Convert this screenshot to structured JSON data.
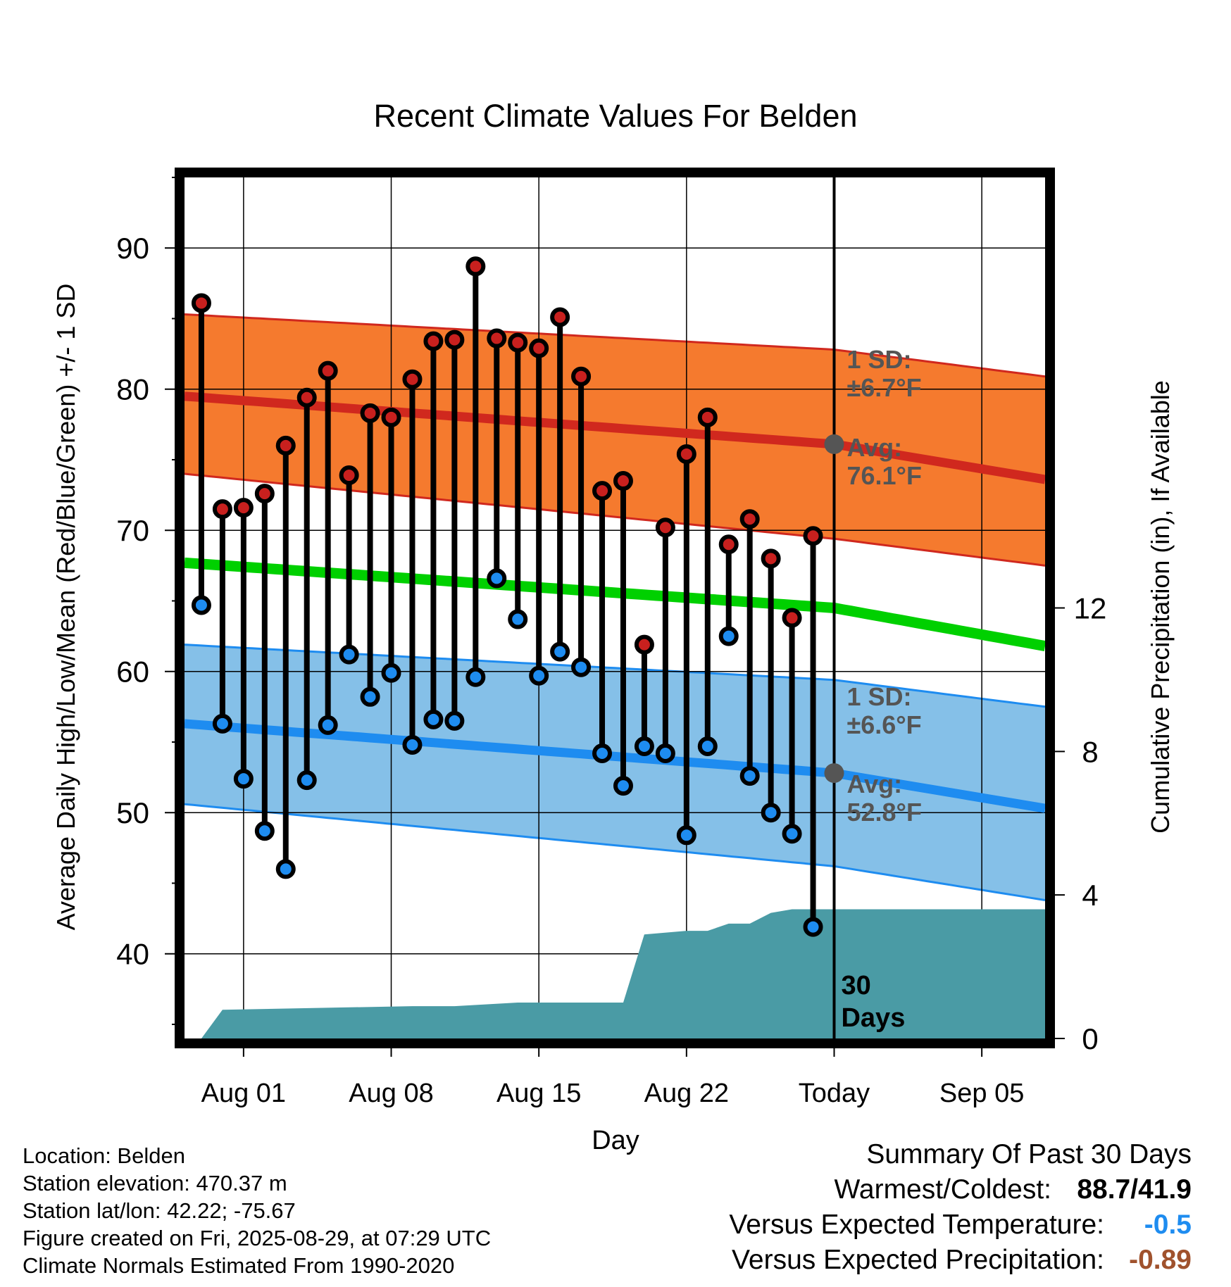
{
  "chart_data": {
    "type": "line",
    "title": "Recent Climate Values For Belden",
    "xlabel": "Day",
    "ylabel": "Average Daily High/Low/Mean (Red/Blue/Green) +/- 1 SD",
    "y2label": "Cumulative Precipitation (in), If Available",
    "ylim": [
      34,
      95
    ],
    "y2lim": [
      0,
      24
    ],
    "y_ticks": [
      40,
      50,
      60,
      70,
      80,
      90
    ],
    "y2_ticks": [
      0,
      4,
      8,
      12
    ],
    "x_ticks": [
      {
        "day": 5,
        "label": "Aug 01"
      },
      {
        "day": 12,
        "label": "Aug 08"
      },
      {
        "day": 19,
        "label": "Aug 15"
      },
      {
        "day": 26,
        "label": "Aug 22"
      },
      {
        "day": 33,
        "label": "Today"
      },
      {
        "day": 40,
        "label": "Sep 05"
      }
    ],
    "xlim": [
      2.2,
      43.0
    ],
    "today_day": 33,
    "period_label": "30 Days",
    "series": [
      {
        "name": "High",
        "color": "#c8201e",
        "x": [
          3,
          4,
          5,
          6,
          7,
          8,
          9,
          10,
          11,
          12,
          13,
          14,
          15,
          16,
          17,
          18,
          19,
          20,
          21,
          22,
          23,
          24,
          25,
          26,
          27,
          28,
          29,
          30,
          31,
          32
        ],
        "values": [
          86.1,
          71.5,
          71.6,
          72.6,
          76.0,
          79.4,
          81.3,
          73.9,
          78.3,
          78.0,
          80.7,
          83.4,
          83.5,
          88.7,
          83.6,
          83.3,
          82.9,
          85.1,
          80.9,
          72.8,
          73.5,
          61.9,
          70.2,
          75.4,
          78.0,
          69.0,
          70.8,
          68.0,
          63.8,
          69.6
        ]
      },
      {
        "name": "Low",
        "color": "#1e8cf0",
        "x": [
          3,
          4,
          5,
          6,
          7,
          8,
          9,
          10,
          11,
          12,
          13,
          14,
          15,
          16,
          17,
          18,
          19,
          20,
          21,
          22,
          23,
          24,
          25,
          26,
          27,
          28,
          29,
          30,
          31,
          32
        ],
        "values": [
          64.7,
          56.3,
          52.4,
          48.7,
          46.0,
          52.3,
          56.2,
          61.2,
          58.2,
          59.9,
          54.8,
          56.6,
          56.5,
          59.6,
          66.6,
          63.7,
          59.7,
          61.4,
          60.3,
          54.2,
          51.9,
          54.7,
          54.2,
          48.4,
          54.7,
          62.5,
          52.6,
          50.0,
          48.5,
          41.9
        ]
      }
    ],
    "normals": {
      "x": [
        2.2,
        33,
        43
      ],
      "high_avg": [
        79.5,
        76.1,
        73.6
      ],
      "high_upper": [
        85.3,
        82.8,
        80.9
      ],
      "high_lower": [
        74.0,
        69.4,
        67.5
      ],
      "low_avg": [
        56.3,
        52.8,
        50.3
      ],
      "low_upper": [
        61.9,
        59.4,
        57.5
      ],
      "low_lower": [
        50.6,
        46.2,
        43.8
      ],
      "mean": [
        67.7,
        64.5,
        61.8
      ]
    },
    "precipitation": {
      "x": [
        3,
        4,
        13,
        15,
        18,
        21,
        23,
        24,
        26,
        27,
        28,
        29,
        30,
        31,
        32,
        33,
        43
      ],
      "values": [
        0,
        0.8,
        0.9,
        0.9,
        1.0,
        1.0,
        1.0,
        2.9,
        3.0,
        3.0,
        3.2,
        3.2,
        3.5,
        3.6,
        3.6,
        3.6,
        3.6
      ]
    },
    "annotations": {
      "high_sd": "1 SD:",
      "high_sd_value": "±6.7°F",
      "high_avg": "Avg:",
      "high_avg_value": "76.1°F",
      "low_sd": "1 SD:",
      "low_sd_value": "±6.6°F",
      "low_avg": "Avg:",
      "low_avg_value": "52.8°F"
    }
  },
  "info": {
    "location": "Location: Belden",
    "elevation": "Station elevation: 470.37 m",
    "latlon": "Station lat/lon: 42.22; -75.67",
    "created": "Figure created on Fri, 2025-08-29, at 07:29 UTC",
    "normals": "Climate Normals Estimated From 1990-2020"
  },
  "summary": {
    "heading": "Summary Of Past 30 Days",
    "warmest_label": "Warmest/Coldest:",
    "warmest_value": "88.7/41.9",
    "temp_label": "Versus Expected Temperature:",
    "temp_value": "-0.5",
    "temp_color": "#1e8cf0",
    "precip_label": "Versus Expected Precipitation:",
    "precip_value": "-0.89",
    "precip_color": "#a0522d"
  }
}
